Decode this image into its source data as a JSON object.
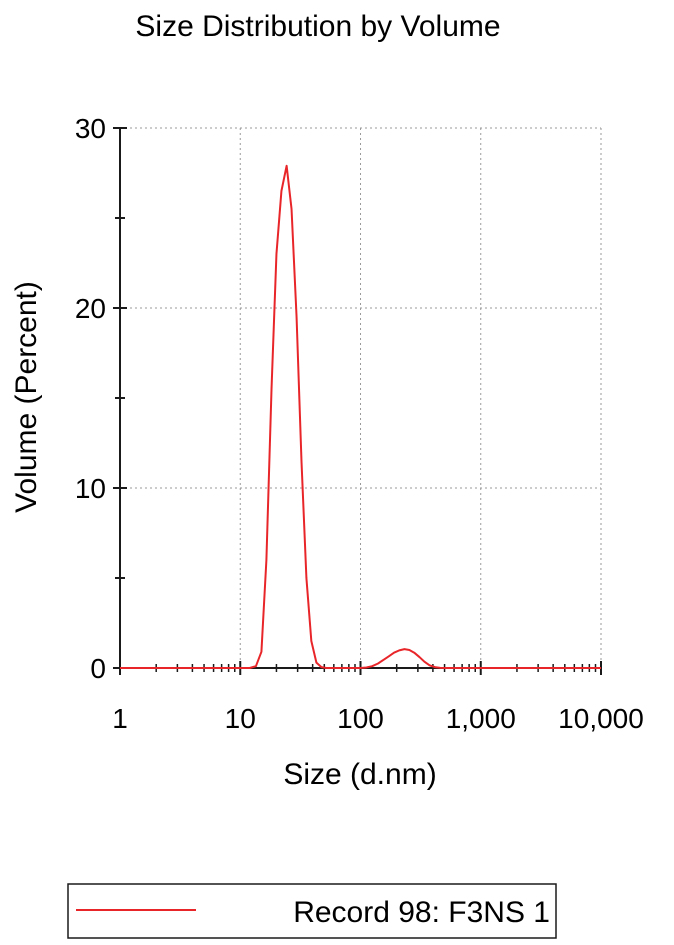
{
  "chart_data": {
    "type": "line",
    "title": "Size Distribution by Volume",
    "xlabel": "Size (d.nm)",
    "ylabel": "Volume (Percent)",
    "x_scale": "log",
    "xlim": [
      1,
      10000
    ],
    "ylim": [
      0,
      30
    ],
    "x_ticks": [
      1,
      10,
      100,
      1000,
      10000
    ],
    "x_tick_labels": [
      "1",
      "10",
      "100",
      "1,000",
      "10,000"
    ],
    "y_ticks": [
      0,
      10,
      20,
      30
    ],
    "y_tick_labels": [
      "0",
      "10",
      "20",
      "30"
    ],
    "grid": true,
    "legend_position": "bottom",
    "series": [
      {
        "name": "Record 98: F3NS 1",
        "color": "#e8262a",
        "x": [
          1,
          12,
          13.5,
          15,
          16.5,
          18.2,
          20,
          22,
          24.3,
          26.7,
          29.4,
          32.3,
          35.5,
          39,
          43,
          47.3,
          52,
          57,
          100,
          112,
          125,
          140,
          155,
          172,
          190,
          210,
          232,
          255,
          280,
          310,
          340,
          375,
          415,
          460,
          510,
          10000
        ],
        "y": [
          0,
          0,
          0.1,
          0.9,
          6,
          15.5,
          23,
          26.5,
          27.9,
          25.5,
          19.5,
          11.5,
          5,
          1.5,
          0.3,
          0.05,
          0,
          0,
          0,
          0.03,
          0.1,
          0.25,
          0.45,
          0.65,
          0.85,
          0.98,
          1.05,
          1.0,
          0.85,
          0.6,
          0.35,
          0.15,
          0.05,
          0.01,
          0,
          0
        ]
      }
    ]
  }
}
